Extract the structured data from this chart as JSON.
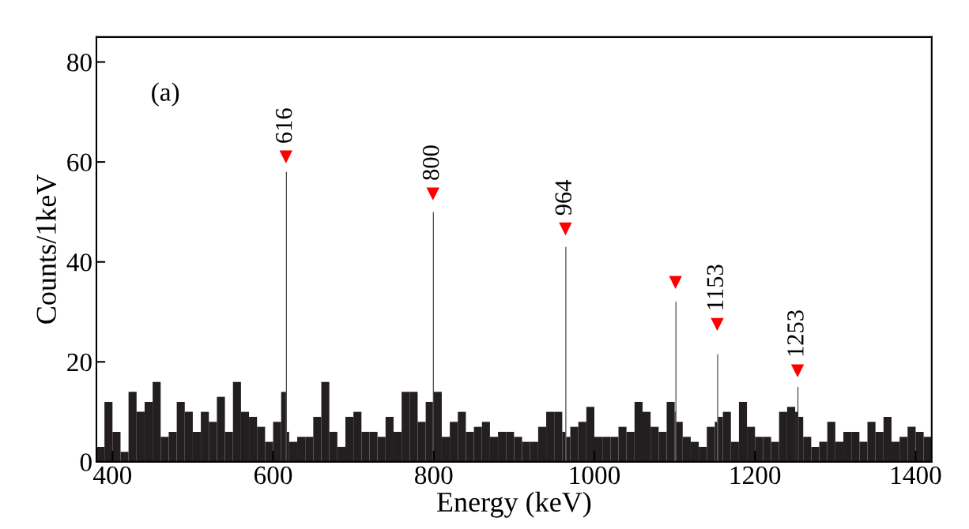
{
  "chart_data": {
    "type": "histogram",
    "xlabel": "Energy (keV)",
    "ylabel": "Counts/1keV",
    "bins": [
      380,
      390,
      400,
      410,
      420,
      430,
      440,
      450,
      460,
      470,
      480,
      490,
      500,
      510,
      520,
      530,
      540,
      550,
      560,
      570,
      580,
      590,
      600,
      610,
      616,
      617,
      620,
      630,
      640,
      650,
      660,
      670,
      680,
      690,
      700,
      710,
      720,
      730,
      740,
      750,
      760,
      770,
      780,
      790,
      799,
      800,
      810,
      820,
      830,
      840,
      850,
      860,
      870,
      880,
      890,
      900,
      910,
      920,
      930,
      940,
      950,
      960,
      964,
      965,
      970,
      980,
      990,
      1000,
      1010,
      1020,
      1030,
      1040,
      1050,
      1060,
      1070,
      1080,
      1090,
      1100,
      1101,
      1102,
      1110,
      1120,
      1130,
      1140,
      1150,
      1153,
      1154,
      1160,
      1170,
      1180,
      1190,
      1200,
      1210,
      1220,
      1230,
      1240,
      1250,
      1253,
      1254,
      1260,
      1270,
      1280,
      1290,
      1300,
      1310,
      1320,
      1330,
      1340,
      1350,
      1360,
      1370,
      1380,
      1390,
      1400,
      1410,
      1420
    ],
    "values": [
      3,
      12,
      6,
      2,
      14,
      10,
      12,
      16,
      5,
      6,
      12,
      10,
      6,
      10,
      8,
      13,
      6,
      16,
      10,
      9,
      7,
      4,
      8,
      14,
      58,
      6,
      4,
      5,
      5,
      9,
      16,
      6,
      3,
      9,
      10,
      6,
      6,
      5,
      9,
      6,
      14,
      14,
      8,
      12,
      50,
      14,
      5,
      8,
      10,
      6,
      7,
      8,
      5,
      6,
      6,
      5,
      4,
      4,
      7,
      10,
      10,
      6,
      43,
      5,
      7,
      8,
      11,
      5,
      5,
      5,
      7,
      6,
      12,
      10,
      7,
      6,
      12,
      10,
      32,
      8,
      5,
      4,
      3,
      7,
      8,
      21.5,
      9,
      10,
      4,
      12,
      7,
      5,
      5,
      4,
      10,
      11,
      10,
      15,
      9,
      5,
      3,
      4,
      8,
      4,
      6,
      6,
      4,
      8,
      6,
      9,
      4,
      5,
      7,
      6,
      5
    ],
    "color": "#231f20",
    "series": [
      {
        "type": "scatter",
        "marker": "triangle",
        "color": "#ff0000",
        "x": [
          616,
          799,
          964,
          1101,
          1153,
          1253
        ],
        "values": [
          61,
          53.6,
          46.6,
          35.9,
          27.5,
          18.2
        ]
      }
    ],
    "xlim": [
      380,
      1420
    ],
    "ylim": [
      0,
      85
    ],
    "xticks": [
      400,
      600,
      800,
      1000,
      1200,
      1400
    ],
    "yticks": [
      0,
      20,
      40,
      60,
      80
    ],
    "grid": false,
    "legend": false,
    "annotations": [
      "(a)",
      {
        "text": "616",
        "x": 616,
        "y": 61
      },
      {
        "text": "800",
        "x": 799,
        "y": 53.6
      },
      {
        "text": "964",
        "x": 964,
        "y": 46.6
      },
      {
        "text": "1153",
        "x": 1153,
        "y": 27.5
      },
      {
        "text": "1253",
        "x": 1253,
        "y": 18.2
      }
    ]
  }
}
